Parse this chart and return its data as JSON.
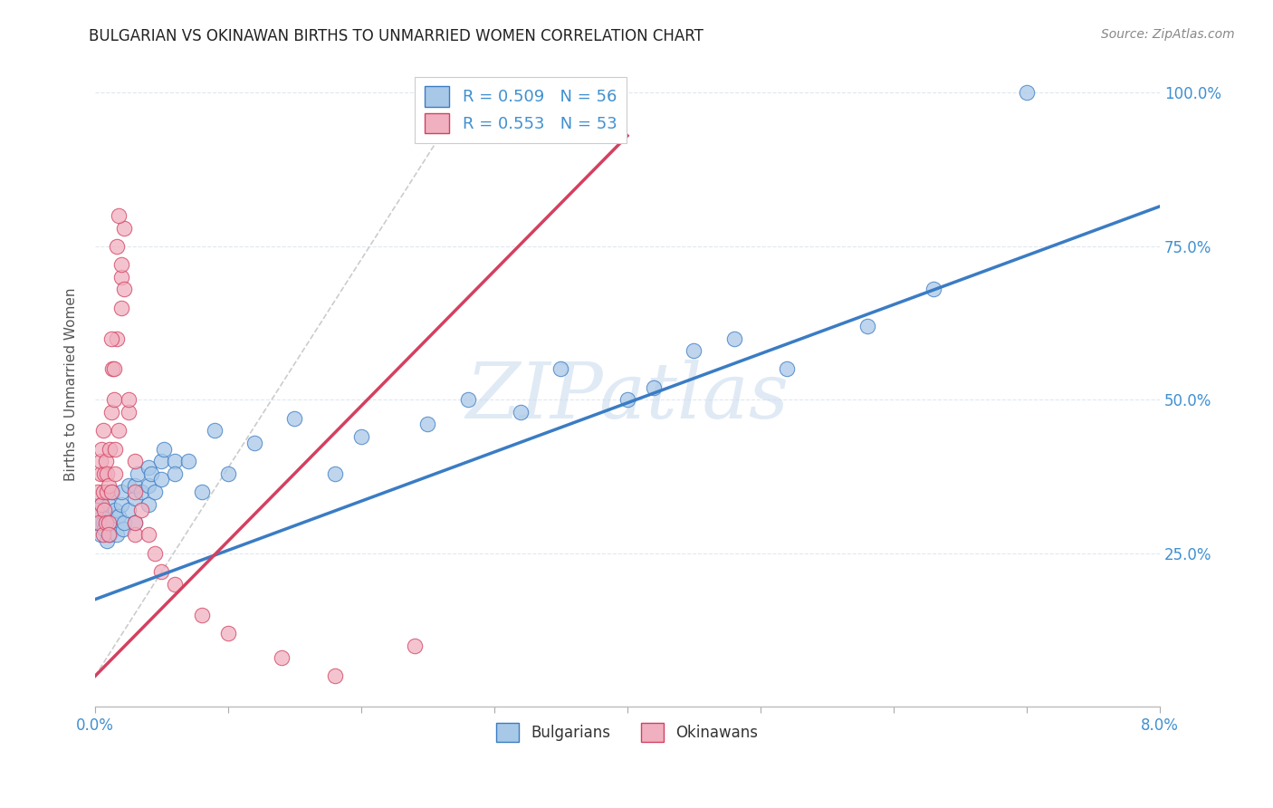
{
  "title": "BULGARIAN VS OKINAWAN BIRTHS TO UNMARRIED WOMEN CORRELATION CHART",
  "source": "Source: ZipAtlas.com",
  "ylabel": "Births to Unmarried Women",
  "legend_blue_label": "R = 0.509   N = 56",
  "legend_pink_label": "R = 0.553   N = 53",
  "legend_bottom_blue": "Bulgarians",
  "legend_bottom_pink": "Okinawans",
  "watermark_text": "ZIPatlas",
  "blue_color": "#a8c8e8",
  "pink_color": "#f0b0c0",
  "blue_line_color": "#3a7cc4",
  "pink_line_color": "#d44060",
  "grid_color": "#dde6f0",
  "title_color": "#222222",
  "axis_label_color": "#4090d0",
  "xmin": 0.0,
  "xmax": 0.08,
  "ymin": 0.0,
  "ymax": 1.05,
  "blue_intercept": 0.175,
  "blue_slope": 8.0,
  "pink_intercept": 0.05,
  "pink_slope": 22.0,
  "bulgarians_x": [
    0.0002,
    0.0003,
    0.0004,
    0.0005,
    0.0006,
    0.0007,
    0.0008,
    0.0009,
    0.001,
    0.0011,
    0.0012,
    0.0013,
    0.0015,
    0.0016,
    0.0018,
    0.002,
    0.002,
    0.0021,
    0.0022,
    0.0025,
    0.0025,
    0.003,
    0.003,
    0.003,
    0.0032,
    0.0035,
    0.004,
    0.004,
    0.004,
    0.0042,
    0.0045,
    0.005,
    0.005,
    0.0052,
    0.006,
    0.006,
    0.007,
    0.008,
    0.009,
    0.01,
    0.012,
    0.015,
    0.018,
    0.02,
    0.025,
    0.028,
    0.032,
    0.035,
    0.04,
    0.042,
    0.045,
    0.048,
    0.052,
    0.058,
    0.063,
    0.07
  ],
  "bulgarians_y": [
    0.3,
    0.32,
    0.28,
    0.33,
    0.3,
    0.29,
    0.31,
    0.27,
    0.33,
    0.28,
    0.3,
    0.35,
    0.32,
    0.28,
    0.31,
    0.33,
    0.35,
    0.29,
    0.3,
    0.36,
    0.32,
    0.34,
    0.3,
    0.36,
    0.38,
    0.35,
    0.36,
    0.33,
    0.39,
    0.38,
    0.35,
    0.4,
    0.37,
    0.42,
    0.4,
    0.38,
    0.4,
    0.35,
    0.45,
    0.38,
    0.43,
    0.47,
    0.38,
    0.44,
    0.46,
    0.5,
    0.48,
    0.55,
    0.5,
    0.52,
    0.58,
    0.6,
    0.55,
    0.62,
    0.68,
    1.0
  ],
  "okinawans_x": [
    0.0001,
    0.0002,
    0.0003,
    0.0004,
    0.0004,
    0.0005,
    0.0005,
    0.0006,
    0.0006,
    0.0006,
    0.0007,
    0.0007,
    0.0008,
    0.0008,
    0.0009,
    0.0009,
    0.001,
    0.001,
    0.001,
    0.0011,
    0.0012,
    0.0012,
    0.0013,
    0.0014,
    0.0015,
    0.0015,
    0.0016,
    0.0018,
    0.002,
    0.002,
    0.0022,
    0.0025,
    0.003,
    0.0012,
    0.0014,
    0.0016,
    0.0018,
    0.002,
    0.0022,
    0.0025,
    0.003,
    0.003,
    0.003,
    0.0035,
    0.004,
    0.0045,
    0.005,
    0.006,
    0.008,
    0.01,
    0.014,
    0.018,
    0.024
  ],
  "okinawans_y": [
    0.32,
    0.35,
    0.3,
    0.38,
    0.4,
    0.33,
    0.42,
    0.35,
    0.28,
    0.45,
    0.32,
    0.38,
    0.4,
    0.3,
    0.38,
    0.35,
    0.3,
    0.36,
    0.28,
    0.42,
    0.35,
    0.48,
    0.55,
    0.5,
    0.42,
    0.38,
    0.6,
    0.45,
    0.65,
    0.7,
    0.78,
    0.48,
    0.28,
    0.6,
    0.55,
    0.75,
    0.8,
    0.72,
    0.68,
    0.5,
    0.4,
    0.35,
    0.3,
    0.32,
    0.28,
    0.25,
    0.22,
    0.2,
    0.15,
    0.12,
    0.08,
    0.05,
    0.1
  ]
}
